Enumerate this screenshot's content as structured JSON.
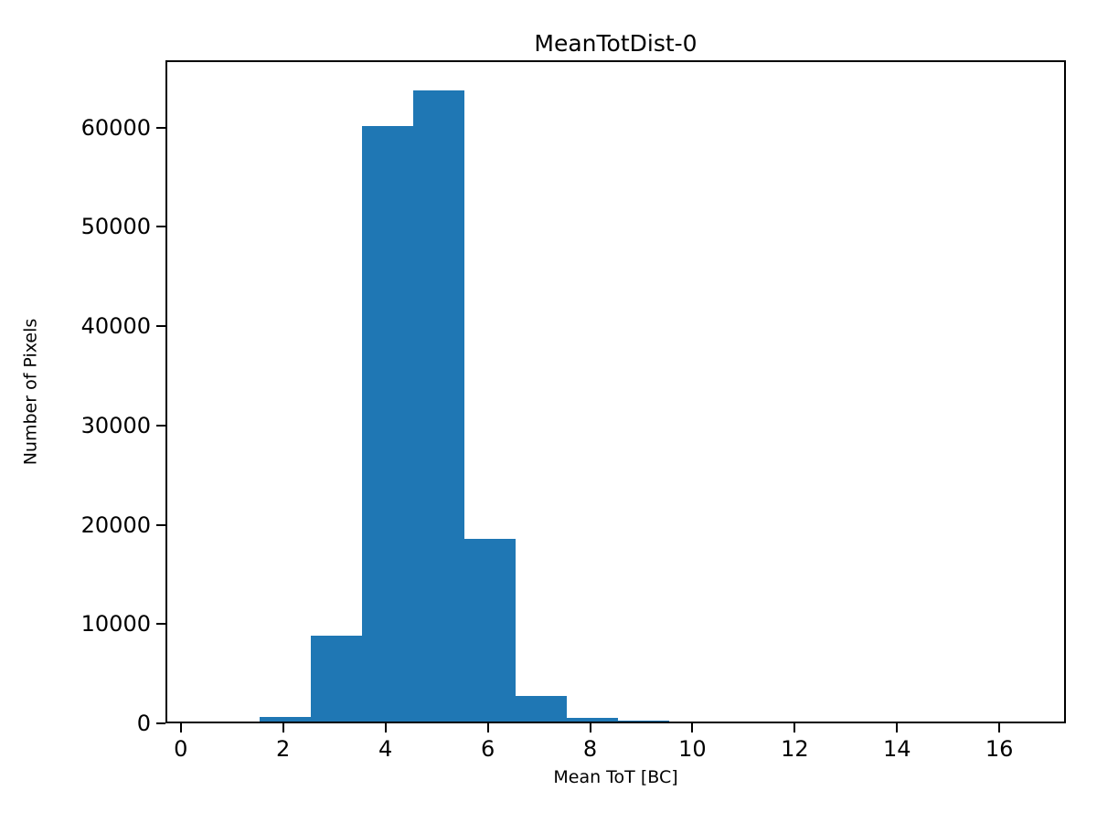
{
  "figure": {
    "background": "#ffffff",
    "text_color": "#000000"
  },
  "chart_data": {
    "type": "bar",
    "subtype": "histogram",
    "title": "MeanTotDist-0",
    "xlabel": "Mean ToT [BC]",
    "ylabel": "Number of Pixels",
    "bin_edges": [
      0.5,
      1.5,
      2.5,
      3.5,
      4.5,
      5.5,
      6.5,
      7.5,
      8.5,
      9.5,
      10.5,
      11.5,
      12.5,
      13.5,
      14.5,
      15.5,
      16.5
    ],
    "counts": [
      0,
      500,
      8650,
      60000,
      63600,
      18400,
      2600,
      400,
      90,
      0,
      0,
      0,
      0,
      0,
      0,
      0
    ],
    "xticks": [
      0,
      2,
      4,
      6,
      8,
      10,
      12,
      14,
      16
    ],
    "yticks": [
      0,
      10000,
      20000,
      30000,
      40000,
      50000,
      60000
    ],
    "xlim": [
      -0.3,
      17.3
    ],
    "ylim": [
      0,
      66780
    ],
    "bar_color": "#1f77b4",
    "axis_color": "#000000",
    "grid": false,
    "legend_position": "none"
  }
}
